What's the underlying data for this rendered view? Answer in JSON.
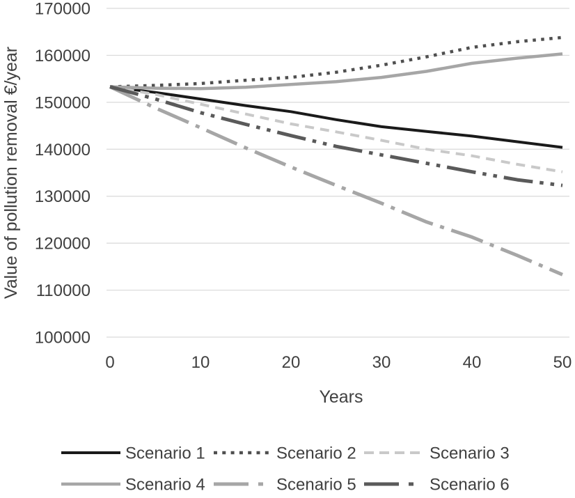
{
  "chart_data": {
    "type": "line",
    "title": "",
    "xlabel": "Years",
    "ylabel": "Value of pollution removal €/year",
    "x": [
      0,
      5,
      10,
      15,
      20,
      25,
      30,
      35,
      40,
      45,
      50
    ],
    "xticks": [
      0,
      10,
      20,
      30,
      40,
      50
    ],
    "yticks": [
      100000,
      110000,
      120000,
      130000,
      140000,
      150000,
      160000,
      170000
    ],
    "xlim": [
      0,
      50
    ],
    "ylim": [
      100000,
      170000
    ],
    "grid": "horizontal-only",
    "gridline_color": "#d9d9d9",
    "axis_text_color": "#404040",
    "legend_position": "bottom-left-two-rows",
    "series": [
      {
        "name": "Scenario 1",
        "color": "#1a1a1a",
        "style": "solid",
        "width": 4,
        "values": [
          153300,
          152100,
          150700,
          149300,
          148000,
          146300,
          144800,
          143800,
          142800,
          141600,
          140400
        ]
      },
      {
        "name": "Scenario 2",
        "color": "#4f4f4f",
        "style": "square-dot",
        "width": 4.5,
        "values": [
          153300,
          153600,
          154000,
          154700,
          155300,
          156400,
          157900,
          159700,
          161700,
          162900,
          163800
        ]
      },
      {
        "name": "Scenario 3",
        "color": "#c9c9c9",
        "style": "dash",
        "width": 4,
        "values": [
          153300,
          151700,
          149600,
          147500,
          145400,
          143700,
          141900,
          140000,
          138600,
          136800,
          135200
        ]
      },
      {
        "name": "Scenario 4",
        "color": "#a6a6a6",
        "style": "solid",
        "width": 4.5,
        "values": [
          153300,
          153000,
          152900,
          153200,
          153800,
          154400,
          155300,
          156600,
          158300,
          159400,
          160300
        ]
      },
      {
        "name": "Scenario 5",
        "color": "#a6a6a6",
        "style": "long-dash-dot",
        "width": 5,
        "values": [
          153300,
          148800,
          144600,
          140300,
          136200,
          132300,
          128500,
          124500,
          121300,
          117400,
          113300
        ]
      },
      {
        "name": "Scenario 6",
        "color": "#5a5a5a",
        "style": "long-dash-dot-dot",
        "width": 5,
        "values": [
          153300,
          150700,
          147800,
          145300,
          142900,
          140600,
          138800,
          137000,
          135200,
          133500,
          132300
        ]
      }
    ]
  }
}
